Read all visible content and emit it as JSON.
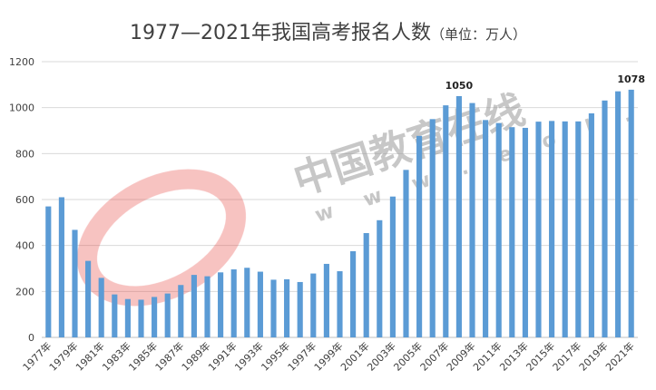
{
  "watermark": {
    "text": "中国教育在线",
    "url": "w w w . e o l . c n",
    "logo_color": "#e53935"
  },
  "chart_data": {
    "type": "bar",
    "title": "1977—2021年我国高考报名人数",
    "subtitle": "（单位：万人）",
    "xlabel": "",
    "ylabel": "",
    "ylim": [
      0,
      1200
    ],
    "yticks": [
      "0",
      "200",
      "400",
      "600",
      "800",
      "1000",
      "1200"
    ],
    "grid": true,
    "legend": "none",
    "bar_color": "#5b9bd5",
    "categories": [
      "1977年",
      "1978年",
      "1979年",
      "1980年",
      "1981年",
      "1982年",
      "1983年",
      "1984年",
      "1985年",
      "1986年",
      "1987年",
      "1988年",
      "1989年",
      "1990年",
      "1991年",
      "1992年",
      "1993年",
      "1994年",
      "1995年",
      "1996年",
      "1997年",
      "1998年",
      "1999年",
      "2000年",
      "2001年",
      "2002年",
      "2003年",
      "2004年",
      "2005年",
      "2006年",
      "2007年",
      "2008年",
      "2009年",
      "2010年",
      "2011年",
      "2012年",
      "2013年",
      "2014年",
      "2015年",
      "2016年",
      "2017年",
      "2018年",
      "2019年",
      "2020年",
      "2021年"
    ],
    "visible_tick_labels": [
      "1977年",
      "1979年",
      "1981年",
      "1983年",
      "1985年",
      "1987年",
      "1989年",
      "1991年",
      "1993年",
      "1995年",
      "1997年",
      "1999年",
      "2001年",
      "2003年",
      "2005年",
      "2007年",
      "2009年",
      "2011年",
      "2013年",
      "2015年",
      "2017年",
      "2019年",
      "2021年"
    ],
    "values": [
      570,
      610,
      468,
      333,
      259,
      187,
      167,
      164,
      176,
      191,
      228,
      272,
      266,
      283,
      296,
      303,
      286,
      251,
      253,
      241,
      278,
      320,
      288,
      375,
      454,
      510,
      613,
      729,
      877,
      950,
      1010,
      1050,
      1020,
      946,
      933,
      915,
      912,
      939,
      942,
      940,
      940,
      975,
      1031,
      1071,
      1078
    ],
    "data_labels": [
      {
        "category": "2008年",
        "text": "1050"
      },
      {
        "category": "2021年",
        "text": "1078"
      }
    ]
  }
}
